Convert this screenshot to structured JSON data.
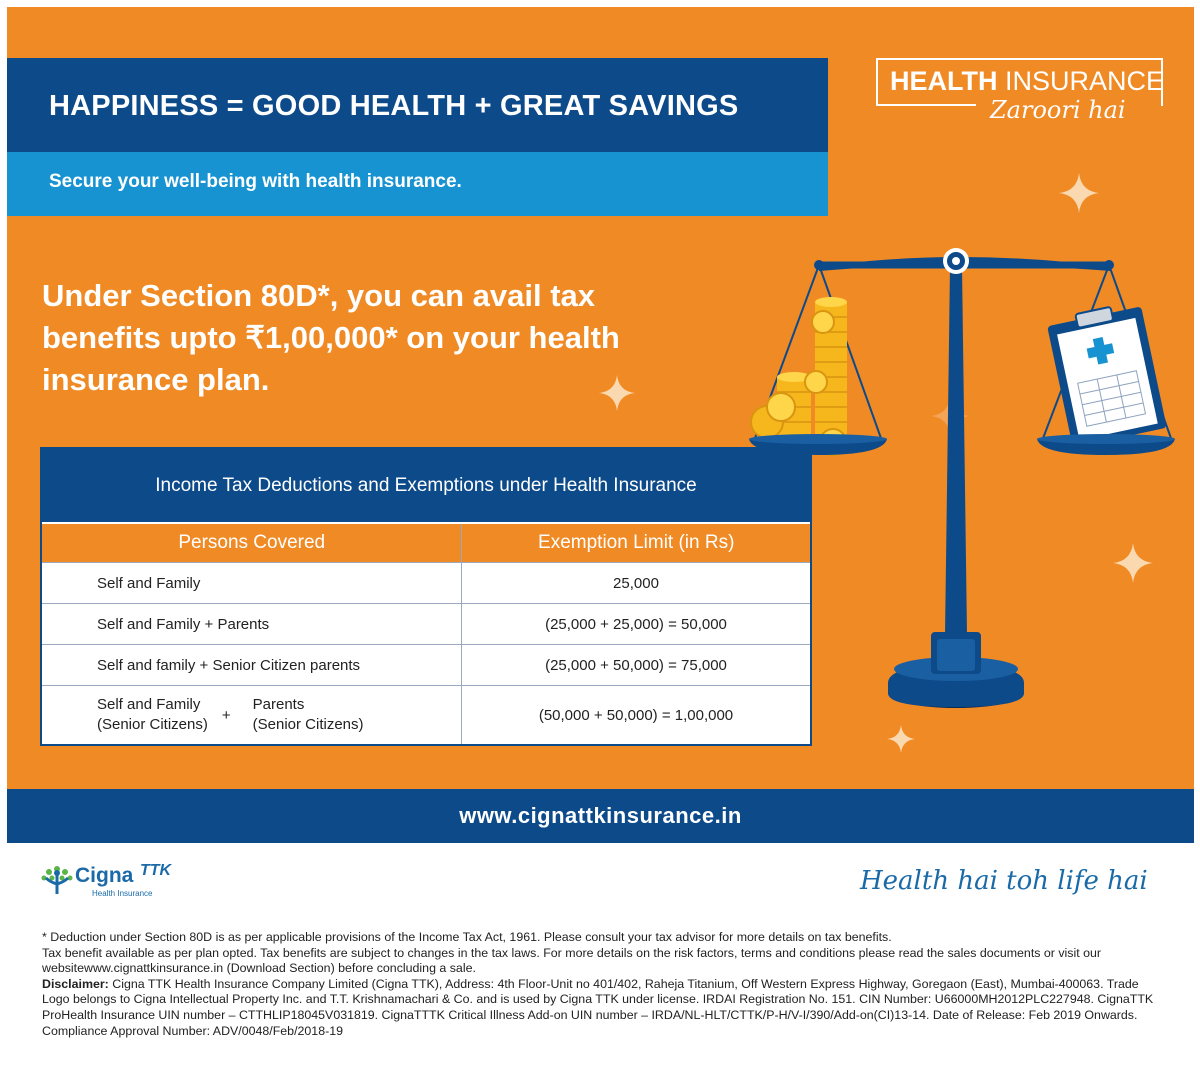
{
  "header": {
    "title": "HAPPINESS = GOOD HEALTH + GREAT SAVINGS",
    "subtitle": "Secure your well-being with health insurance."
  },
  "brand": {
    "bold": "HEALTH",
    "light": " INSURANCE",
    "script": "Zaroori hai"
  },
  "headline": "Under Section 80D*, you can avail tax benefits upto ₹1,00,000* on your health insurance plan.",
  "table": {
    "title": "Income Tax Deductions and Exemptions under Health Insurance",
    "columns": [
      "Persons Covered",
      "Exemption Limit (in Rs)"
    ],
    "rows": [
      {
        "persons": "Self and Family",
        "limit": "25,000"
      },
      {
        "persons": "Self and Family + Parents",
        "limit": "(25,000 + 25,000) = 50,000"
      },
      {
        "persons": "Self and family + Senior Citizen parents",
        "limit": "(25,000 + 50,000) = 75,000"
      },
      {
        "persons_a_line1": "Self and Family",
        "persons_a_line2": "(Senior Citizens)",
        "plus": "+",
        "persons_b_line1": "Parents",
        "persons_b_line2": "(Senior Citizens)",
        "limit": "(50,000 + 50,000) = 1,00,000"
      }
    ]
  },
  "url": "www.cignattkinsurance.in",
  "logo": {
    "name": "Cigna",
    "mark": "TTK",
    "subtext": "Health Insurance"
  },
  "tagline": "Health hai toh life hai",
  "disclaimer": [
    "* Deduction under Section 80D is as per applicable provisions of the Income Tax Act, 1961. Please consult your tax advisor for more details on tax benefits.",
    "Tax benefit available as per plan opted. Tax benefits are subject to changes in the tax laws. For more details on the risk factors, terms and conditions please read the sales documents or visit our websitewww.cignattkinsurance.in (Download Section) before concluding a sale.",
    "Disclaimer:",
    " Cigna TTK Health Insurance Company Limited (Cigna TTK), Address: 4th Floor-Unit no 401/402, Raheja Titanium, Off Western Express Highway, Goregaon (East), Mumbai-400063. Trade Logo belongs to Cigna Intellectual Property Inc. and T.T. Krishnamachari & Co. and is used by Cigna TTK under license. IRDAI Registration No. 151. CIN Number: U66000MH2012PLC227948. CignaTTK ProHealth Insurance UIN number – CTTHLIP18045V031819. CignaTTTK Critical Illness Add-on UIN number – IRDA/NL-HLT/CTTK/P-H/V-I/390/Add-on(CI)13-14. Date of Release: Feb 2019 Onwards.",
    "Compliance Approval Number: ADV/0048/Feb/2018-19"
  ],
  "colors": {
    "orange": "#f08a25",
    "navy": "#0d4a8a",
    "sky": "#1793d2",
    "gold": "#f5b71c"
  }
}
